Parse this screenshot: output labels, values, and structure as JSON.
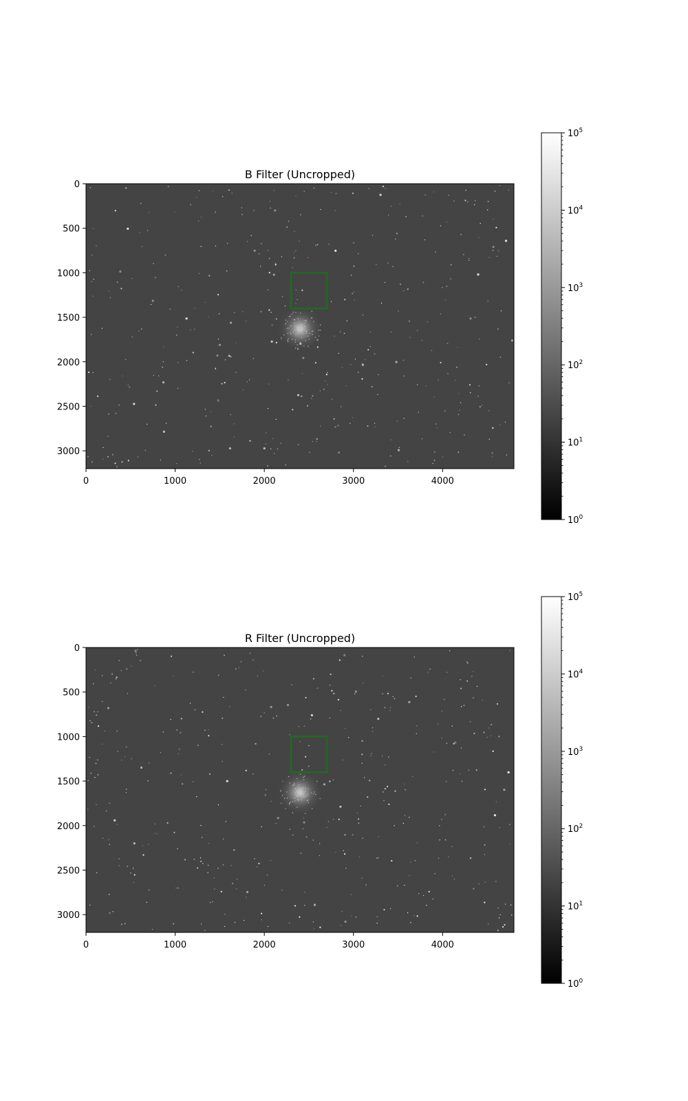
{
  "chart_data": [
    {
      "type": "heatmap",
      "title": "B Filter (Uncropped)",
      "xlabel": "",
      "ylabel": "",
      "x_ticks": [
        0,
        1000,
        2000,
        3000,
        4000
      ],
      "y_ticks": [
        0,
        500,
        1000,
        1500,
        2000,
        2500,
        3000
      ],
      "xlim": [
        0,
        4800
      ],
      "ylim": [
        3200,
        0
      ],
      "colormap": "gray",
      "color_scale": "log",
      "colorbar": {
        "range": [
          1,
          100000
        ],
        "ticks": [
          0,
          1,
          2,
          3,
          4,
          5
        ]
      },
      "background_color": "#444444",
      "cluster_center": {
        "x": 2400,
        "y": 1630
      },
      "highlight_box": {
        "x0": 2300,
        "x1": 2700,
        "y0": 1000,
        "y1": 1400,
        "color": "#1f6b1f"
      }
    },
    {
      "type": "heatmap",
      "title": "R Filter (Uncropped)",
      "xlabel": "",
      "ylabel": "",
      "x_ticks": [
        0,
        1000,
        2000,
        3000,
        4000
      ],
      "y_ticks": [
        0,
        500,
        1000,
        1500,
        2000,
        2500,
        3000
      ],
      "xlim": [
        0,
        4800
      ],
      "ylim": [
        3200,
        0
      ],
      "colormap": "gray",
      "color_scale": "log",
      "colorbar": {
        "range": [
          1,
          100000
        ],
        "ticks": [
          0,
          1,
          2,
          3,
          4,
          5
        ]
      },
      "background_color": "#444444",
      "cluster_center": {
        "x": 2400,
        "y": 1630
      },
      "highlight_box": {
        "x0": 2300,
        "x1": 2700,
        "y0": 1000,
        "y1": 1400,
        "color": "#1f6b1f"
      }
    }
  ]
}
